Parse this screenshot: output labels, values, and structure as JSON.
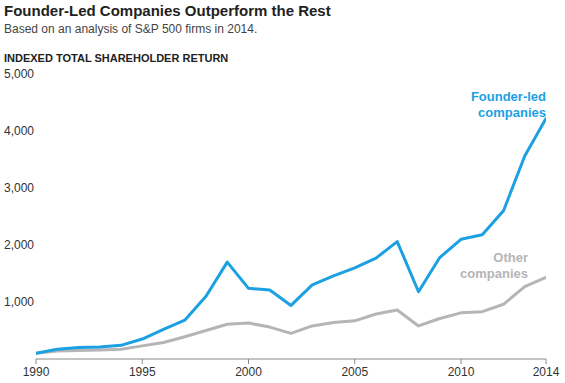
{
  "chart_data": {
    "type": "line",
    "title": "Founder-Led Companies Outperform the Rest",
    "subtitle": "Based on an analysis of S&P 500 firms in 2014.",
    "y_label": "INDEXED TOTAL SHAREHOLDER RETURN",
    "x": [
      1990,
      1991,
      1992,
      1993,
      1994,
      1995,
      1996,
      1997,
      1998,
      1999,
      2000,
      2001,
      2002,
      2003,
      2004,
      2005,
      2006,
      2007,
      2008,
      2009,
      2010,
      2011,
      2012,
      2013,
      2014
    ],
    "series": [
      {
        "name": "Founder-led companies",
        "color": "#1ba1e2",
        "values": [
          100,
          170,
          200,
          210,
          240,
          350,
          520,
          680,
          1100,
          1700,
          1240,
          1210,
          940,
          1300,
          1460,
          1600,
          1770,
          2060,
          1180,
          1780,
          2100,
          2180,
          2600,
          3560,
          4220
        ]
      },
      {
        "name": "Other companies",
        "color": "#b5b5b5",
        "values": [
          100,
          140,
          150,
          160,
          170,
          230,
          290,
          390,
          500,
          610,
          630,
          560,
          450,
          580,
          640,
          670,
          790,
          860,
          580,
          710,
          810,
          830,
          960,
          1270,
          1430
        ]
      }
    ],
    "xlim": [
      1990,
      2014
    ],
    "xticks": [
      1990,
      1995,
      2000,
      2005,
      2010,
      2014
    ],
    "ylim": [
      0,
      5000
    ],
    "yticks": [
      {
        "value": 1000,
        "label": "1,000"
      },
      {
        "value": 2000,
        "label": "2,000"
      },
      {
        "value": 3000,
        "label": "3,000"
      },
      {
        "value": 4000,
        "label": "4,000"
      },
      {
        "value": 5000,
        "label": "5,000"
      }
    ],
    "grid": false
  }
}
